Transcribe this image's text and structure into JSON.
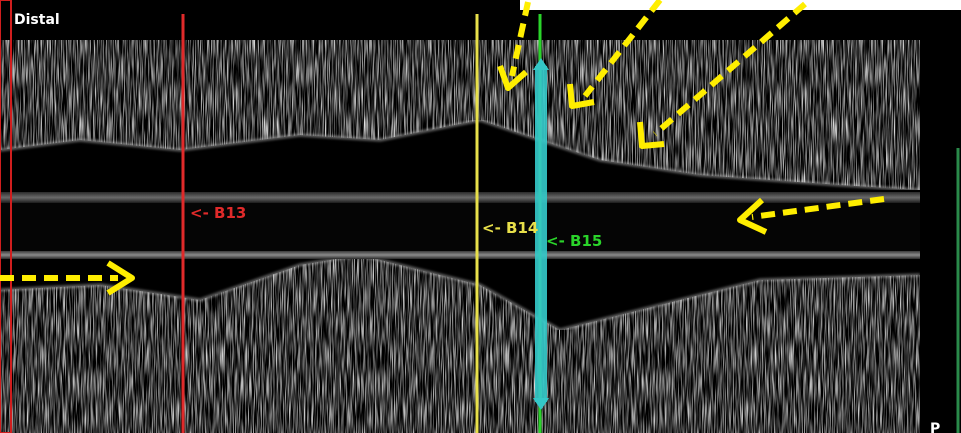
{
  "image": {
    "type": "intravascular-OCT-longitudinal-view",
    "corner_label": "Distal",
    "corner_label_partial": "P",
    "colors": {
      "background": "#000000",
      "tissue": "#d8d8d8",
      "frame_b13": "#e02a2a",
      "frame_b14": "#e8e04a",
      "frame_b15": "#2ad42a",
      "measurement": "#34c8c8",
      "arrow": "#ffee00",
      "left_border": "#d01e1e",
      "right_border": "#2a8a4a"
    }
  },
  "markers": [
    {
      "id": "B13",
      "label": "<- B13",
      "color": "#e02a2a"
    },
    {
      "id": "B14",
      "label": "<- B14",
      "color": "#e8e04a"
    },
    {
      "id": "B15",
      "label": "<- B15",
      "color": "#2ad42a"
    }
  ],
  "annotations": {
    "arrow_color": "#ffee00",
    "arrow_style": "dashed",
    "arrow_count": 5,
    "measurement_color": "#34c8c8"
  }
}
